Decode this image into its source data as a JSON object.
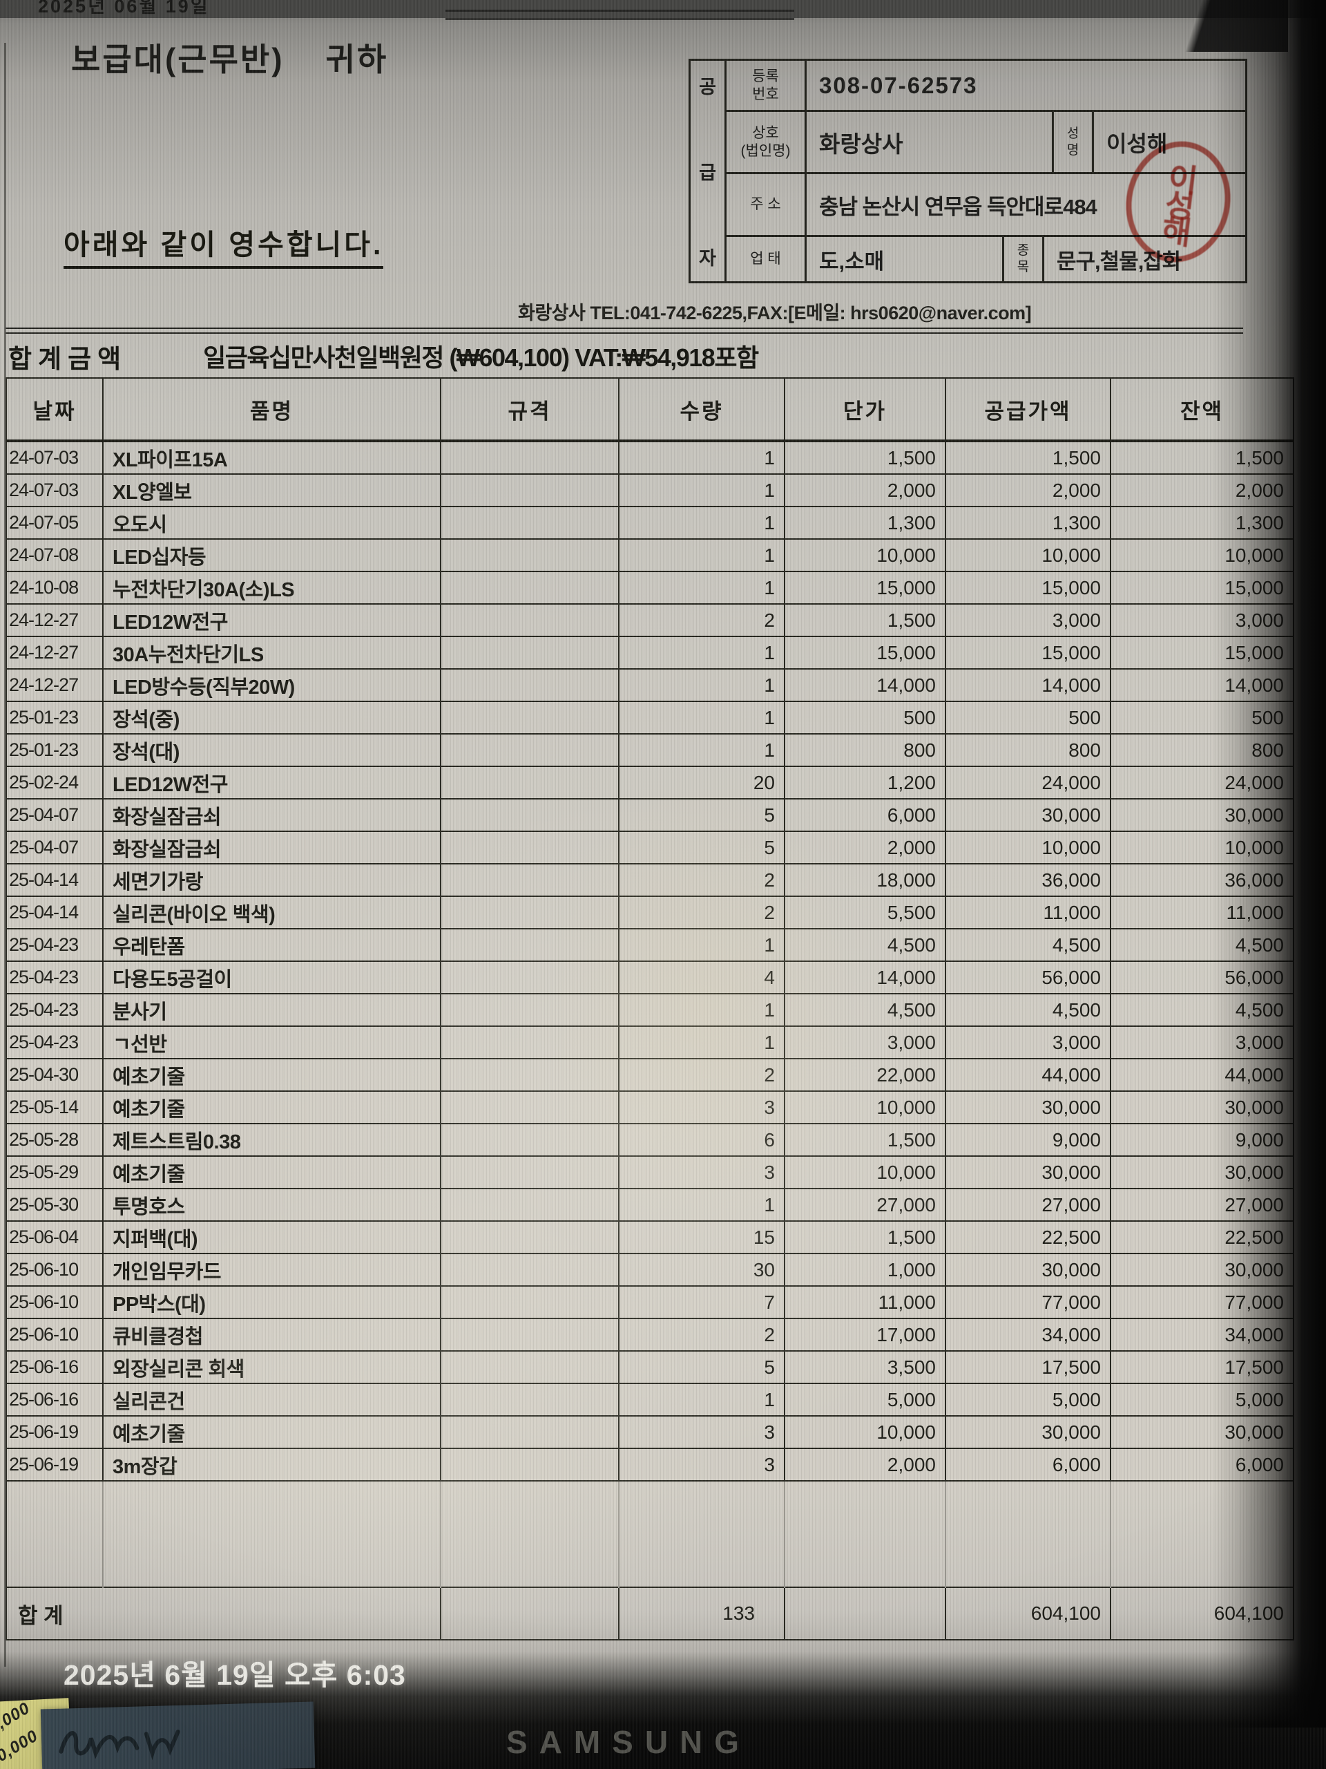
{
  "screen": {
    "top_strip_text": "2025년 06월 19일",
    "timestamp": "2025년 6월 19일 오후 6:03",
    "brand": "SAMSUNG",
    "note_lines": [
      ",000",
      "0,000"
    ]
  },
  "colors": {
    "paper": "#d3cfc6",
    "ink": "#1d1d1b",
    "stamp_red": "#b5281e",
    "bezel_black": "#070706",
    "brand_gray": "#53534d"
  },
  "document": {
    "recipient": "보급대(근무반)",
    "honorific": "귀하",
    "statement": "아래와 같이 영수합니다.",
    "supplier": {
      "party_chars": [
        "공",
        "급",
        "자"
      ],
      "reg_label_1": "등록",
      "reg_label_2": "번호",
      "reg_no": "308-07-62573",
      "trade_label_1": "상호",
      "trade_label_2": "(법인명)",
      "trade_name": "화랑상사",
      "name_label_1": "성",
      "name_label_2": "명",
      "ceo_name": "이성해",
      "stamp_text": "이성해",
      "addr_label": "주 소",
      "address": "충남 논산시 연무읍 득안대로484",
      "biz_label": "업 태",
      "biz_type": "도,소매",
      "item_label_1": "종",
      "item_label_2": "목",
      "item_type": "문구,철물,잡화"
    },
    "contact_line": "화랑상사 TEL:041-742-6225,FAX:[E메일: hrs0620@naver.com]",
    "total_label": "합계금액",
    "total_text": "일금육십만사천일백원정 (₩604,100) VAT:₩54,918포함",
    "table": {
      "headers": [
        "날짜",
        "품명",
        "규격",
        "수량",
        "단가",
        "공급가액",
        "잔액"
      ],
      "rows": [
        {
          "date": "24-07-03",
          "name": "XL파이프15A",
          "spec": "",
          "qty": "1",
          "unit": "1,500",
          "supply": "1,500",
          "balance": "1,500"
        },
        {
          "date": "24-07-03",
          "name": "XL양엘보",
          "spec": "",
          "qty": "1",
          "unit": "2,000",
          "supply": "2,000",
          "balance": "2,000"
        },
        {
          "date": "24-07-05",
          "name": "오도시",
          "spec": "",
          "qty": "1",
          "unit": "1,300",
          "supply": "1,300",
          "balance": "1,300"
        },
        {
          "date": "24-07-08",
          "name": "LED십자등",
          "spec": "",
          "qty": "1",
          "unit": "10,000",
          "supply": "10,000",
          "balance": "10,000"
        },
        {
          "date": "24-10-08",
          "name": "누전차단기30A(소)LS",
          "spec": "",
          "qty": "1",
          "unit": "15,000",
          "supply": "15,000",
          "balance": "15,000"
        },
        {
          "date": "24-12-27",
          "name": "LED12W전구",
          "spec": "",
          "qty": "2",
          "unit": "1,500",
          "supply": "3,000",
          "balance": "3,000"
        },
        {
          "date": "24-12-27",
          "name": "30A누전차단기LS",
          "spec": "",
          "qty": "1",
          "unit": "15,000",
          "supply": "15,000",
          "balance": "15,000"
        },
        {
          "date": "24-12-27",
          "name": "LED방수등(직부20W)",
          "spec": "",
          "qty": "1",
          "unit": "14,000",
          "supply": "14,000",
          "balance": "14,000"
        },
        {
          "date": "25-01-23",
          "name": "장석(중)",
          "spec": "",
          "qty": "1",
          "unit": "500",
          "supply": "500",
          "balance": "500"
        },
        {
          "date": "25-01-23",
          "name": "장석(대)",
          "spec": "",
          "qty": "1",
          "unit": "800",
          "supply": "800",
          "balance": "800"
        },
        {
          "date": "25-02-24",
          "name": "LED12W전구",
          "spec": "",
          "qty": "20",
          "unit": "1,200",
          "supply": "24,000",
          "balance": "24,000"
        },
        {
          "date": "25-04-07",
          "name": "화장실잠금쇠",
          "spec": "",
          "qty": "5",
          "unit": "6,000",
          "supply": "30,000",
          "balance": "30,000"
        },
        {
          "date": "25-04-07",
          "name": "화장실잠금쇠",
          "spec": "",
          "qty": "5",
          "unit": "2,000",
          "supply": "10,000",
          "balance": "10,000"
        },
        {
          "date": "25-04-14",
          "name": "세면기가랑",
          "spec": "",
          "qty": "2",
          "unit": "18,000",
          "supply": "36,000",
          "balance": "36,000"
        },
        {
          "date": "25-04-14",
          "name": "실리콘(바이오 백색)",
          "spec": "",
          "qty": "2",
          "unit": "5,500",
          "supply": "11,000",
          "balance": "11,000"
        },
        {
          "date": "25-04-23",
          "name": "우레탄폼",
          "spec": "",
          "qty": "1",
          "unit": "4,500",
          "supply": "4,500",
          "balance": "4,500"
        },
        {
          "date": "25-04-23",
          "name": "다용도5공걸이",
          "spec": "",
          "qty": "4",
          "unit": "14,000",
          "supply": "56,000",
          "balance": "56,000"
        },
        {
          "date": "25-04-23",
          "name": "분사기",
          "spec": "",
          "qty": "1",
          "unit": "4,500",
          "supply": "4,500",
          "balance": "4,500"
        },
        {
          "date": "25-04-23",
          "name": "ㄱ선반",
          "spec": "",
          "qty": "1",
          "unit": "3,000",
          "supply": "3,000",
          "balance": "3,000"
        },
        {
          "date": "25-04-30",
          "name": "예초기줄",
          "spec": "",
          "qty": "2",
          "unit": "22,000",
          "supply": "44,000",
          "balance": "44,000"
        },
        {
          "date": "25-05-14",
          "name": "예초기줄",
          "spec": "",
          "qty": "3",
          "unit": "10,000",
          "supply": "30,000",
          "balance": "30,000"
        },
        {
          "date": "25-05-28",
          "name": "제트스트림0.38",
          "spec": "",
          "qty": "6",
          "unit": "1,500",
          "supply": "9,000",
          "balance": "9,000"
        },
        {
          "date": "25-05-29",
          "name": "예초기줄",
          "spec": "",
          "qty": "3",
          "unit": "10,000",
          "supply": "30,000",
          "balance": "30,000"
        },
        {
          "date": "25-05-30",
          "name": "투명호스",
          "spec": "",
          "qty": "1",
          "unit": "27,000",
          "supply": "27,000",
          "balance": "27,000"
        },
        {
          "date": "25-06-04",
          "name": "지퍼백(대)",
          "spec": "",
          "qty": "15",
          "unit": "1,500",
          "supply": "22,500",
          "balance": "22,500"
        },
        {
          "date": "25-06-10",
          "name": "개인임무카드",
          "spec": "",
          "qty": "30",
          "unit": "1,000",
          "supply": "30,000",
          "balance": "30,000"
        },
        {
          "date": "25-06-10",
          "name": "PP박스(대)",
          "spec": "",
          "qty": "7",
          "unit": "11,000",
          "supply": "77,000",
          "balance": "77,000"
        },
        {
          "date": "25-06-10",
          "name": "큐비클경첩",
          "spec": "",
          "qty": "2",
          "unit": "17,000",
          "supply": "34,000",
          "balance": "34,000"
        },
        {
          "date": "25-06-16",
          "name": "외장실리콘 회색",
          "spec": "",
          "qty": "5",
          "unit": "3,500",
          "supply": "17,500",
          "balance": "17,500"
        },
        {
          "date": "25-06-16",
          "name": "실리콘건",
          "spec": "",
          "qty": "1",
          "unit": "5,000",
          "supply": "5,000",
          "balance": "5,000"
        },
        {
          "date": "25-06-19",
          "name": "예초기줄",
          "spec": "",
          "qty": "3",
          "unit": "10,000",
          "supply": "30,000",
          "balance": "30,000"
        },
        {
          "date": "25-06-19",
          "name": "3m장갑",
          "spec": "",
          "qty": "3",
          "unit": "2,000",
          "supply": "6,000",
          "balance": "6,000"
        }
      ],
      "footer": {
        "label": "합      계",
        "qty": "133",
        "supply": "604,100",
        "balance": "604,100"
      }
    }
  }
}
